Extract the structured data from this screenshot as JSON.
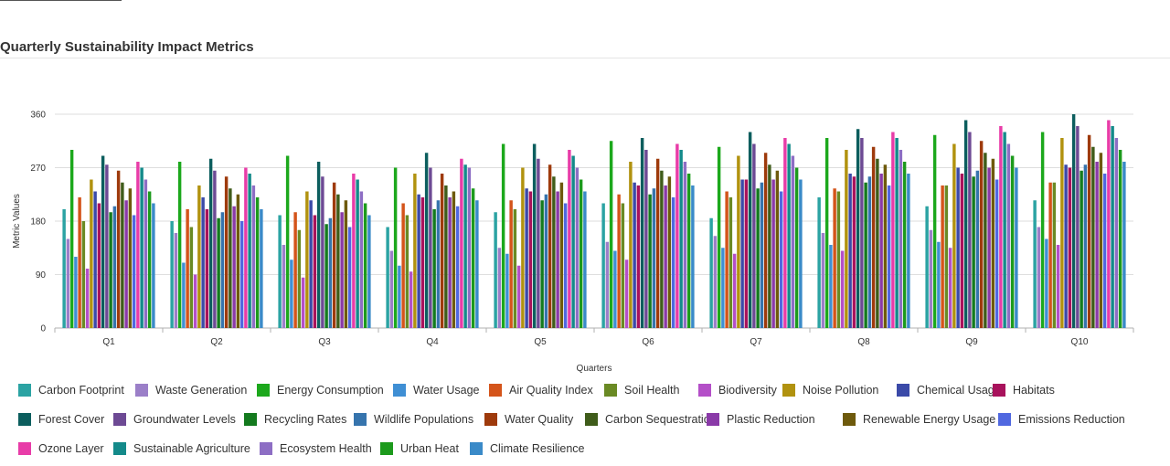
{
  "page": {
    "title": "Quarterly Sustainability Impact Metrics"
  },
  "chart_data": {
    "type": "bar",
    "title": "Quarterly Sustainability Impact Metrics",
    "xlabel": "Quarters",
    "ylabel": "Metric Values",
    "ylim": [
      0,
      360
    ],
    "yticks": [
      0,
      90,
      180,
      270,
      360
    ],
    "grid": true,
    "legend_position": "bottom",
    "categories": [
      "Q1",
      "Q2",
      "Q3",
      "Q4",
      "Q5",
      "Q6",
      "Q7",
      "Q8",
      "Q9",
      "Q10"
    ],
    "series": [
      {
        "name": "Carbon Footprint",
        "color": "#2ba3a3",
        "values": [
          200,
          180,
          190,
          170,
          195,
          210,
          185,
          220,
          205,
          215
        ]
      },
      {
        "name": "Waste Generation",
        "color": "#9b7fc8",
        "values": [
          150,
          160,
          140,
          130,
          135,
          145,
          155,
          160,
          165,
          170
        ]
      },
      {
        "name": "Energy Consumption",
        "color": "#1ca81c",
        "values": [
          300,
          280,
          290,
          270,
          310,
          315,
          305,
          320,
          325,
          330
        ]
      },
      {
        "name": "Water Usage",
        "color": "#3f8fd4",
        "values": [
          120,
          110,
          115,
          105,
          125,
          130,
          135,
          140,
          145,
          150
        ]
      },
      {
        "name": "Air Quality Index",
        "color": "#d4541a",
        "values": [
          220,
          200,
          195,
          210,
          215,
          225,
          230,
          235,
          240,
          245
        ]
      },
      {
        "name": "Soil Health",
        "color": "#6a8a24",
        "values": [
          180,
          170,
          165,
          190,
          200,
          210,
          220,
          230,
          240,
          245
        ]
      },
      {
        "name": "Biodiversity",
        "color": "#b44fc8",
        "values": [
          100,
          90,
          85,
          95,
          105,
          115,
          125,
          130,
          135,
          140
        ]
      },
      {
        "name": "Noise Pollution",
        "color": "#b1920f",
        "values": [
          250,
          240,
          230,
          260,
          270,
          280,
          290,
          300,
          310,
          320
        ]
      },
      {
        "name": "Chemical Usage",
        "color": "#3b4aa8",
        "values": [
          230,
          220,
          215,
          225,
          235,
          245,
          250,
          260,
          270,
          275
        ]
      },
      {
        "name": "Habitats",
        "color": "#a8125c",
        "values": [
          210,
          200,
          190,
          220,
          230,
          240,
          250,
          255,
          260,
          270
        ]
      },
      {
        "name": "Forest Cover",
        "color": "#0c5e5e",
        "values": [
          290,
          285,
          280,
          295,
          310,
          320,
          330,
          335,
          350,
          360
        ]
      },
      {
        "name": "Groundwater Levels",
        "color": "#6d4a94",
        "values": [
          275,
          265,
          255,
          270,
          285,
          300,
          310,
          320,
          330,
          340
        ]
      },
      {
        "name": "Recycling Rates",
        "color": "#147a1e",
        "values": [
          195,
          185,
          175,
          200,
          215,
          225,
          235,
          245,
          255,
          265
        ]
      },
      {
        "name": "Wildlife Populations",
        "color": "#3674ad",
        "values": [
          205,
          195,
          185,
          215,
          225,
          235,
          245,
          255,
          265,
          275
        ]
      },
      {
        "name": "Water Quality",
        "color": "#9e3a0c",
        "values": [
          265,
          255,
          245,
          260,
          275,
          285,
          295,
          305,
          315,
          325
        ]
      },
      {
        "name": "Carbon Sequestration",
        "color": "#3f5c1a",
        "values": [
          245,
          235,
          225,
          240,
          255,
          265,
          275,
          285,
          295,
          305
        ]
      },
      {
        "name": "Plastic Reduction",
        "color": "#8a3aa8",
        "values": [
          215,
          205,
          195,
          220,
          230,
          240,
          250,
          260,
          270,
          280
        ]
      },
      {
        "name": "Renewable Energy Usage",
        "color": "#6e5a0c",
        "values": [
          235,
          225,
          215,
          230,
          245,
          255,
          265,
          275,
          285,
          295
        ]
      },
      {
        "name": "Emissions Reduction",
        "color": "#5068e0",
        "values": [
          190,
          180,
          170,
          205,
          210,
          220,
          230,
          240,
          250,
          260
        ]
      },
      {
        "name": "Ozone Layer",
        "color": "#e83ca8",
        "values": [
          280,
          270,
          260,
          285,
          300,
          310,
          320,
          330,
          340,
          350
        ]
      },
      {
        "name": "Sustainable Agriculture",
        "color": "#148a8a",
        "values": [
          270,
          260,
          250,
          275,
          290,
          300,
          310,
          320,
          330,
          340
        ]
      },
      {
        "name": "Ecosystem Health",
        "color": "#8d6ec4",
        "values": [
          250,
          240,
          230,
          270,
          270,
          280,
          290,
          300,
          310,
          320
        ]
      },
      {
        "name": "Urban Heat",
        "color": "#1c9a1c",
        "values": [
          230,
          220,
          210,
          235,
          250,
          260,
          270,
          280,
          290,
          300
        ]
      },
      {
        "name": "Climate Resilience",
        "color": "#3a8ac8",
        "values": [
          210,
          200,
          190,
          215,
          230,
          240,
          250,
          260,
          270,
          280
        ]
      }
    ]
  }
}
